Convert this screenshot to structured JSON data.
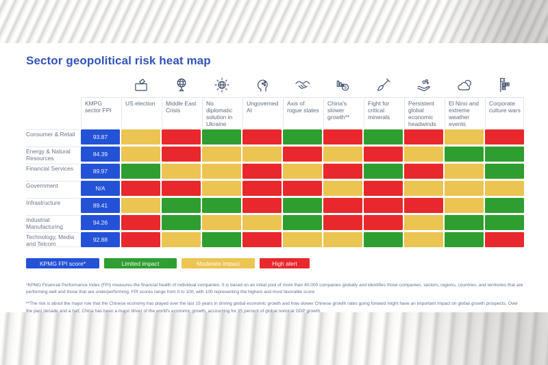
{
  "colors": {
    "fpi": "#2452d6",
    "limited": "#2f9e30",
    "moderate": "#ecc451",
    "high": "#e8282c",
    "title": "#3353b9",
    "icon_stroke": "#3d4c6b"
  },
  "chart_data": {
    "type": "heatmap",
    "title": "Sector geopolitical risk heat map",
    "fpi_header": "KMPG sector FPI",
    "x_categories": [
      "US election",
      "Middle East Crisis",
      "No diplomatic solution in Ukraine",
      "Ungoverned AI",
      "Axis of rogue states",
      "China's slower growth**",
      "Fight for critical minerals",
      "Persistent global economic headwinds",
      "El Nino and extreme weather events",
      "Corporate culture wars"
    ],
    "icons": [
      "ballot-box-icon",
      "globe-icon",
      "globe-burst-icon",
      "ai-head-icon",
      "handshake-icon",
      "declining-chart-coin-icon",
      "shovel-icon",
      "hand-coins-icon",
      "cloud-icon",
      "flag-blocks-icon"
    ],
    "y_categories": [
      "Consumer & Retail",
      "Energy & Natural Resources",
      "Financial Services",
      "Government",
      "Infrastructure",
      "Industrial Manufacturing",
      "Technology, Media and Telcom"
    ],
    "fpi_scores": [
      "93.87",
      "84.39",
      "89.97",
      "N/A",
      "89.41",
      "94.26",
      "92.88"
    ],
    "values": [
      [
        "moderate",
        "high",
        "limited",
        "high",
        "limited",
        "high",
        "limited",
        "high",
        "moderate",
        "high"
      ],
      [
        "moderate",
        "high",
        "moderate",
        "moderate",
        "high",
        "moderate",
        "high",
        "moderate",
        "limited",
        "limited"
      ],
      [
        "limited",
        "moderate",
        "moderate",
        "high",
        "moderate",
        "high",
        "limited",
        "high",
        "moderate",
        "limited"
      ],
      [
        "high",
        "high",
        "moderate",
        "high",
        "high",
        "moderate",
        "high",
        "moderate",
        "moderate",
        "moderate"
      ],
      [
        "moderate",
        "limited",
        "limited",
        "high",
        "limited",
        "high",
        "high",
        "high",
        "moderate",
        "limited"
      ],
      [
        "high",
        "limited",
        "moderate",
        "moderate",
        "limited",
        "high",
        "high",
        "moderate",
        "limited",
        "limited"
      ],
      [
        "high",
        "moderate",
        "limited",
        "high",
        "moderate",
        "moderate",
        "limited",
        "moderate",
        "limited",
        "high"
      ]
    ],
    "legend_position": "bottom-left"
  },
  "legend": [
    {
      "label": "KPMG FPI score*",
      "color_key": "fpi"
    },
    {
      "label": "Limited impact",
      "color_key": "limited"
    },
    {
      "label": "Moderate impact",
      "color_key": "moderate"
    },
    {
      "label": "High alert",
      "color_key": "high"
    }
  ],
  "footnotes": [
    "*KPMG Financial Performance Index (FPI) measures the financial health of individual companies. It is based on an initial pool of more than 40,000 companies globally and identifies those companies, sectors, regions, countries, and territories that are performing well and those that are underperforming. FPI scores range from 0 to 100, with 100 representing the highest and most favorable score",
    "**The risk is about the major role that the Chinese economy has played over the last 15 years in driving global economic growth and how slower Chinese growth rates going forward might have an important impact on global growth prospects. Over the past decade and a half, China has been a major driver of the world's economic growth, accounting for 35 percent of global nominal GDP growth."
  ]
}
